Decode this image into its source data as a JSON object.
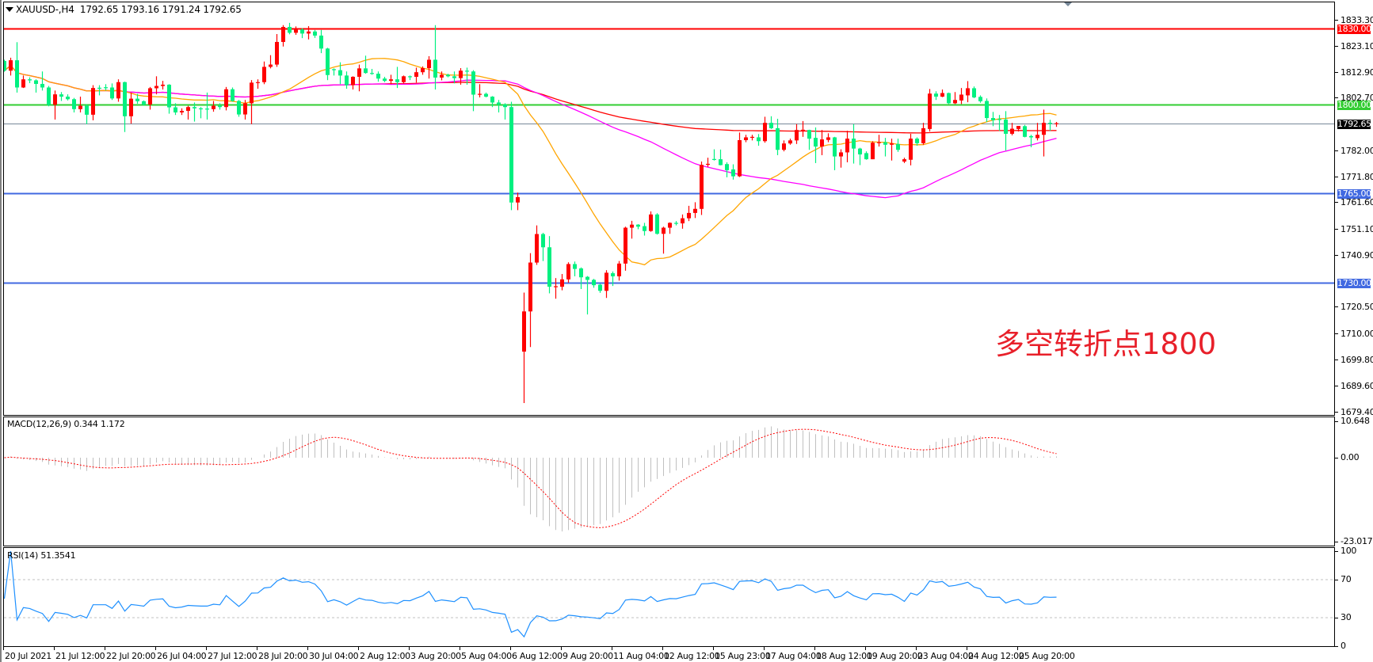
{
  "header": {
    "symbol": "XAUUSD-,H4",
    "ohlc": "1792.65 1793.16 1791.24 1792.65"
  },
  "annotation": {
    "text": "多空转折点1800",
    "color": "#e8202a"
  },
  "colors": {
    "bull": "#ff0000",
    "bear": "#00f080",
    "ma_fast": "#ffa500",
    "ma_mid": "#ff00ff",
    "ma_slow": "#ff0000",
    "macd_hist": "#c0c0c0",
    "macd_signal": "#ff0000",
    "rsi": "#1e90ff",
    "bid_line": "#778899"
  },
  "price_axis": [
    "1833.30",
    "1823.10",
    "1812.90",
    "1802.70",
    "1782.00",
    "1771.80",
    "1761.60",
    "1751.10",
    "1740.90",
    "1720.50",
    "1710.00",
    "1699.80",
    "1689.60",
    "1679.40"
  ],
  "levels": [
    {
      "label": "1830.00",
      "value": 1830.0,
      "color": "#ff0000"
    },
    {
      "label": "1800.00",
      "value": 1800.0,
      "color": "#32cd32"
    },
    {
      "label": "1792.65",
      "value": 1792.65,
      "color": "#000000",
      "line": "#778899"
    },
    {
      "label": "1765.00",
      "value": 1765.0,
      "color": "#4169e1"
    },
    {
      "label": "1730.00",
      "value": 1730.0,
      "color": "#4169e1"
    }
  ],
  "macd": {
    "label": "MACD(12,26,9) 0.344 1.172",
    "axis": [
      "10.648",
      "0.00",
      "-23.017"
    ]
  },
  "rsi": {
    "label": "RSI(14) 51.3541",
    "axis": [
      "100",
      "70",
      "30",
      "0"
    ]
  },
  "time_axis": [
    "20 Jul 2021",
    "21 Jul 12:00",
    "22 Jul 20:00",
    "26 Jul 04:00",
    "27 Jul 12:00",
    "28 Jul 20:00",
    "30 Jul 04:00",
    "2 Aug 12:00",
    "3 Aug 20:00",
    "5 Aug 04:00",
    "6 Aug 12:00",
    "9 Aug 20:00",
    "11 Aug 04:00",
    "12 Aug 12:00",
    "15 Aug 23:00",
    "17 Aug 04:00",
    "18 Aug 12:00",
    "19 Aug 20:00",
    "23 Aug 04:00",
    "24 Aug 12:00",
    "25 Aug 20:00"
  ],
  "chart_data": {
    "type": "candlestick",
    "timeframe": "H4",
    "ylim": [
      1679.4,
      1833.3
    ],
    "ohlc": [
      [
        1817.1,
        1817.6,
        1812.9,
        1813.3
      ],
      [
        1813.3,
        1818.4,
        1811.4,
        1817.4
      ],
      [
        1817.4,
        1824.5,
        1804.7,
        1806.7
      ],
      [
        1806.7,
        1811.4,
        1806.5,
        1809.9
      ],
      [
        1809.9,
        1810.7,
        1808.4,
        1809.5
      ],
      [
        1809.5,
        1809.9,
        1804.7,
        1808.1
      ],
      [
        1808.1,
        1813.0,
        1805.5,
        1806.7
      ],
      [
        1806.7,
        1807.3,
        1799.3,
        1799.9
      ],
      [
        1799.9,
        1805.5,
        1794.1,
        1804.0
      ],
      [
        1804.0,
        1804.9,
        1801.4,
        1803.1
      ],
      [
        1803.1,
        1804.0,
        1801.6,
        1802.1
      ],
      [
        1802.1,
        1802.6,
        1796.9,
        1798.2
      ],
      [
        1798.2,
        1803.1,
        1796.9,
        1799.5
      ],
      [
        1799.5,
        1800.0,
        1792.3,
        1796.0
      ],
      [
        1796.0,
        1807.6,
        1793.8,
        1806.5
      ],
      [
        1806.6,
        1807.6,
        1803.6,
        1806.5
      ],
      [
        1806.8,
        1808.0,
        1805.5,
        1806.5
      ],
      [
        1806.7,
        1808.3,
        1801.8,
        1802.4
      ],
      [
        1802.4,
        1809.9,
        1801.1,
        1808.8
      ],
      [
        1808.8,
        1809.0,
        1789.2,
        1795.4
      ],
      [
        1795.4,
        1804.7,
        1792.5,
        1802.3
      ],
      [
        1802.3,
        1804.2,
        1800.3,
        1801.3
      ],
      [
        1801.3,
        1801.6,
        1799.5,
        1800.0
      ],
      [
        1800.0,
        1806.9,
        1798.0,
        1806.4
      ],
      [
        1806.4,
        1811.1,
        1804.0,
        1807.3
      ],
      [
        1807.3,
        1809.3,
        1805.9,
        1807.8
      ],
      [
        1807.8,
        1808.0,
        1796.4,
        1798.9
      ],
      [
        1798.9,
        1800.5,
        1795.9,
        1796.9
      ],
      [
        1796.9,
        1798.5,
        1795.9,
        1797.5
      ],
      [
        1797.5,
        1799.5,
        1794.1,
        1799.0
      ],
      [
        1799.0,
        1800.8,
        1793.3,
        1798.5
      ],
      [
        1798.5,
        1799.0,
        1794.6,
        1798.2
      ],
      [
        1798.4,
        1804.7,
        1794.1,
        1798.2
      ],
      [
        1798.2,
        1801.4,
        1797.2,
        1799.5
      ],
      [
        1799.5,
        1800.5,
        1798.0,
        1799.0
      ],
      [
        1799.0,
        1806.9,
        1797.7,
        1806.0
      ],
      [
        1806.0,
        1806.7,
        1801.1,
        1801.4
      ],
      [
        1801.4,
        1801.8,
        1795.2,
        1796.1
      ],
      [
        1796.1,
        1801.8,
        1794.1,
        1800.5
      ],
      [
        1800.5,
        1809.6,
        1792.3,
        1808.6
      ],
      [
        1808.6,
        1809.9,
        1806.2,
        1808.8
      ],
      [
        1808.8,
        1816.9,
        1808.0,
        1814.8
      ],
      [
        1814.8,
        1819.4,
        1814.2,
        1815.7
      ],
      [
        1815.7,
        1827.7,
        1814.8,
        1824.6
      ],
      [
        1824.6,
        1831.2,
        1822.8,
        1830.5
      ],
      [
        1830.5,
        1832.1,
        1827.6,
        1828.2
      ],
      [
        1828.2,
        1830.7,
        1827.4,
        1829.5
      ],
      [
        1829.5,
        1830.0,
        1826.1,
        1827.9
      ],
      [
        1827.9,
        1830.8,
        1825.6,
        1828.7
      ],
      [
        1828.7,
        1829.3,
        1826.2,
        1827.1
      ],
      [
        1827.1,
        1829.3,
        1820.2,
        1822.0
      ],
      [
        1822.0,
        1822.3,
        1809.6,
        1811.6
      ],
      [
        1813.9,
        1814.2,
        1811.4,
        1813.5
      ],
      [
        1813.5,
        1816.6,
        1808.0,
        1811.4
      ],
      [
        1811.4,
        1813.0,
        1806.2,
        1807.6
      ],
      [
        1807.6,
        1811.1,
        1805.9,
        1810.9
      ],
      [
        1810.9,
        1815.7,
        1805.2,
        1814.2
      ],
      [
        1814.2,
        1819.2,
        1812.1,
        1812.4
      ],
      [
        1812.4,
        1814.0,
        1811.7,
        1812.1
      ],
      [
        1812.1,
        1813.0,
        1809.0,
        1810.2
      ],
      [
        1810.2,
        1810.9,
        1808.8,
        1809.3
      ],
      [
        1809.3,
        1811.7,
        1808.0,
        1809.9
      ],
      [
        1809.9,
        1814.8,
        1806.5,
        1808.8
      ],
      [
        1808.8,
        1811.4,
        1808.3,
        1811.1
      ],
      [
        1811.1,
        1811.4,
        1809.6,
        1810.9
      ],
      [
        1810.9,
        1814.5,
        1808.6,
        1812.7
      ],
      [
        1812.7,
        1815.0,
        1811.7,
        1814.3
      ],
      [
        1814.3,
        1819.0,
        1810.2,
        1817.6
      ],
      [
        1817.6,
        1831.2,
        1805.9,
        1810.6
      ],
      [
        1810.6,
        1813.0,
        1809.5,
        1811.7
      ],
      [
        1811.7,
        1812.1,
        1810.7,
        1811.1
      ],
      [
        1811.1,
        1813.0,
        1808.3,
        1810.4
      ],
      [
        1810.4,
        1814.3,
        1807.8,
        1813.3
      ],
      [
        1813.3,
        1814.5,
        1807.8,
        1813.0
      ],
      [
        1813.0,
        1813.5,
        1797.4,
        1803.9
      ],
      [
        1803.9,
        1808.0,
        1802.8,
        1804.2
      ],
      [
        1804.2,
        1804.7,
        1802.8,
        1803.1
      ],
      [
        1803.1,
        1803.3,
        1799.0,
        1800.8
      ],
      [
        1800.8,
        1801.8,
        1796.9,
        1800.0
      ],
      [
        1800.0,
        1800.5,
        1794.1,
        1799.0
      ],
      [
        1799.0,
        1801.1,
        1758.5,
        1761.5
      ],
      [
        1761.5,
        1765.4,
        1758.5,
        1763.6
      ],
      [
        1702.9,
        1726.1,
        1682.7,
        1718.7
      ],
      [
        1718.7,
        1741.6,
        1704.7,
        1737.9
      ],
      [
        1737.9,
        1752.5,
        1737.0,
        1749.1
      ],
      [
        1749.1,
        1749.6,
        1738.5,
        1743.9
      ],
      [
        1743.9,
        1748.3,
        1725.8,
        1728.4
      ],
      [
        1728.4,
        1731.8,
        1723.7,
        1728.6
      ],
      [
        1728.4,
        1733.4,
        1727.0,
        1731.3
      ],
      [
        1731.3,
        1738.0,
        1730.0,
        1737.3
      ],
      [
        1737.3,
        1738.3,
        1732.5,
        1735.4
      ],
      [
        1735.6,
        1736.0,
        1727.5,
        1732.1
      ],
      [
        1732.3,
        1732.6,
        1717.5,
        1731.1
      ],
      [
        1731.1,
        1731.5,
        1728.0,
        1729.0
      ],
      [
        1729.2,
        1729.5,
        1726.0,
        1726.8
      ],
      [
        1726.8,
        1734.9,
        1724.0,
        1733.9
      ],
      [
        1733.7,
        1734.4,
        1728.7,
        1732.5
      ],
      [
        1732.5,
        1738.5,
        1730.8,
        1737.5
      ],
      [
        1737.5,
        1752.0,
        1734.7,
        1751.6
      ],
      [
        1751.6,
        1754.3,
        1747.3,
        1752.8
      ],
      [
        1752.8,
        1753.0,
        1751.0,
        1752.0
      ],
      [
        1752.2,
        1753.5,
        1748.5,
        1750.3
      ],
      [
        1750.3,
        1758.0,
        1750.0,
        1756.8
      ],
      [
        1756.8,
        1757.3,
        1748.9,
        1749.2
      ],
      [
        1749.2,
        1752.0,
        1741.4,
        1751.6
      ],
      [
        1751.6,
        1753.7,
        1749.2,
        1753.5
      ],
      [
        1753.5,
        1754.2,
        1752.5,
        1753.3
      ],
      [
        1753.3,
        1756.8,
        1751.2,
        1755.3
      ],
      [
        1755.3,
        1760.2,
        1754.2,
        1757.4
      ],
      [
        1757.4,
        1761.6,
        1755.4,
        1759.0
      ],
      [
        1759.0,
        1777.6,
        1756.6,
        1776.3
      ],
      [
        1776.3,
        1779.1,
        1775.5,
        1776.7
      ],
      [
        1778.6,
        1782.4,
        1778.0,
        1778.3
      ],
      [
        1778.5,
        1782.3,
        1776.1,
        1776.2
      ],
      [
        1776.6,
        1777.3,
        1771.4,
        1774.2
      ],
      [
        1774.5,
        1776.5,
        1770.5,
        1771.8
      ],
      [
        1771.8,
        1789.0,
        1771.5,
        1786.0
      ],
      [
        1786.0,
        1788.1,
        1785.2,
        1787.1
      ],
      [
        1787.1,
        1788.1,
        1785.9,
        1787.3
      ],
      [
        1787.1,
        1788.4,
        1783.8,
        1785.6
      ],
      [
        1785.6,
        1795.2,
        1785.0,
        1792.8
      ],
      [
        1792.8,
        1795.4,
        1790.4,
        1790.7
      ],
      [
        1790.7,
        1794.4,
        1780.1,
        1782.2
      ],
      [
        1782.2,
        1785.9,
        1781.6,
        1784.7
      ],
      [
        1784.7,
        1786.6,
        1784.2,
        1785.9
      ],
      [
        1785.9,
        1792.3,
        1784.5,
        1790.0
      ],
      [
        1790.0,
        1793.5,
        1787.3,
        1790.1
      ],
      [
        1790.0,
        1790.1,
        1782.2,
        1786.6
      ],
      [
        1786.9,
        1791.0,
        1777.0,
        1783.5
      ],
      [
        1783.5,
        1790.0,
        1780.1,
        1786.3
      ],
      [
        1786.1,
        1788.7,
        1785.2,
        1787.1
      ],
      [
        1787.1,
        1787.3,
        1774.2,
        1779.6
      ],
      [
        1779.6,
        1782.4,
        1775.2,
        1781.2
      ],
      [
        1781.2,
        1789.7,
        1777.3,
        1786.6
      ],
      [
        1786.6,
        1792.3,
        1776.8,
        1782.7
      ],
      [
        1782.7,
        1783.0,
        1776.2,
        1780.4
      ],
      [
        1780.9,
        1781.6,
        1778.3,
        1778.5
      ],
      [
        1778.5,
        1785.6,
        1778.5,
        1785.0
      ],
      [
        1785.0,
        1788.1,
        1783.5,
        1785.2
      ],
      [
        1785.2,
        1786.9,
        1779.6,
        1784.2
      ],
      [
        1784.2,
        1786.6,
        1778.0,
        1784.7
      ],
      [
        1784.5,
        1786.6,
        1781.4,
        1782.2
      ],
      [
        1777.6,
        1779.1,
        1777.0,
        1778.5
      ],
      [
        1778.3,
        1788.5,
        1776.1,
        1786.6
      ],
      [
        1786.6,
        1787.1,
        1783.8,
        1784.8
      ],
      [
        1784.8,
        1792.8,
        1784.2,
        1790.7
      ],
      [
        1790.4,
        1806.1,
        1789.4,
        1804.3
      ],
      [
        1804.3,
        1805.2,
        1801.8,
        1803.1
      ],
      [
        1803.1,
        1805.9,
        1802.9,
        1804.5
      ],
      [
        1804.5,
        1804.7,
        1800.2,
        1800.5
      ],
      [
        1800.5,
        1804.9,
        1800.2,
        1801.8
      ],
      [
        1801.6,
        1806.5,
        1800.2,
        1803.9
      ],
      [
        1803.6,
        1809.2,
        1800.9,
        1806.4
      ],
      [
        1806.4,
        1807.1,
        1802.5,
        1802.8
      ],
      [
        1803.0,
        1803.6,
        1800.7,
        1801.3
      ],
      [
        1801.4,
        1802.4,
        1793.1,
        1794.7
      ],
      [
        1794.7,
        1797.1,
        1791.5,
        1793.8
      ],
      [
        1794.3,
        1795.9,
        1789.7,
        1794.0
      ],
      [
        1794.1,
        1797.4,
        1781.9,
        1788.5
      ],
      [
        1788.5,
        1792.8,
        1787.9,
        1790.5
      ],
      [
        1790.4,
        1791.6,
        1789.4,
        1791.6
      ],
      [
        1791.5,
        1792.0,
        1787.1,
        1787.3
      ],
      [
        1787.6,
        1788.1,
        1783.2,
        1787.1
      ],
      [
        1786.8,
        1792.8,
        1785.9,
        1788.1
      ],
      [
        1788.1,
        1798.0,
        1779.6,
        1792.8
      ],
      [
        1792.8,
        1794.0,
        1789.7,
        1792.5
      ],
      [
        1792.65,
        1793.16,
        1791.24,
        1792.65
      ]
    ]
  }
}
